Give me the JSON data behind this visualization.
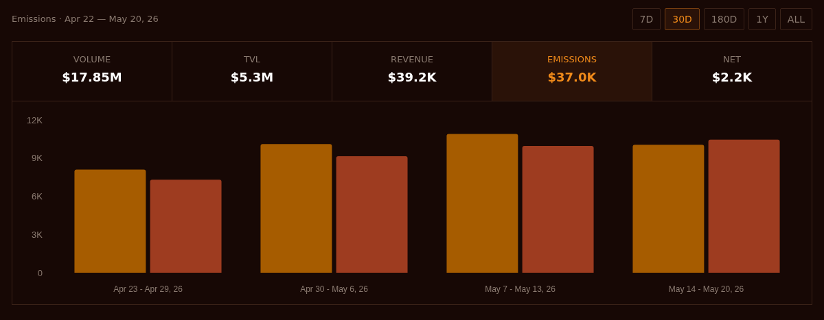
{
  "chart_data": {
    "type": "bar",
    "title": "Emissions · Apr 22 — May 20, 26",
    "annotations": [
      "7D",
      "30D",
      "180D",
      "1Y",
      "ALL",
      "VOLUME",
      "$17.85M",
      "TVL",
      "$5.3M",
      "REVENUE",
      "$39.2K",
      "EMISSIONS",
      "$37.0K",
      "NET",
      "$2.2K"
    ],
    "categories": [
      "Apr 23 - Apr 29, 26",
      "Apr 30 - May 6, 26",
      "May 7 - May 13, 26",
      "May 14 - May 20, 26"
    ],
    "series": [
      {
        "color": "#a65c00",
        "values": [
          8100,
          10100,
          10900,
          10050
        ]
      },
      {
        "color": "#9e3c20",
        "values": [
          7300,
          9150,
          9950,
          10450
        ]
      }
    ],
    "ylim": [
      0,
      12000
    ],
    "yticks": [
      {
        "value": 0,
        "label": "0"
      },
      {
        "value": 3000,
        "label": "3K"
      },
      {
        "value": 6000,
        "label": "6K"
      },
      {
        "value": 9000,
        "label": "9K"
      },
      {
        "value": 12000,
        "label": "12K"
      }
    ],
    "grid": false
  }
}
